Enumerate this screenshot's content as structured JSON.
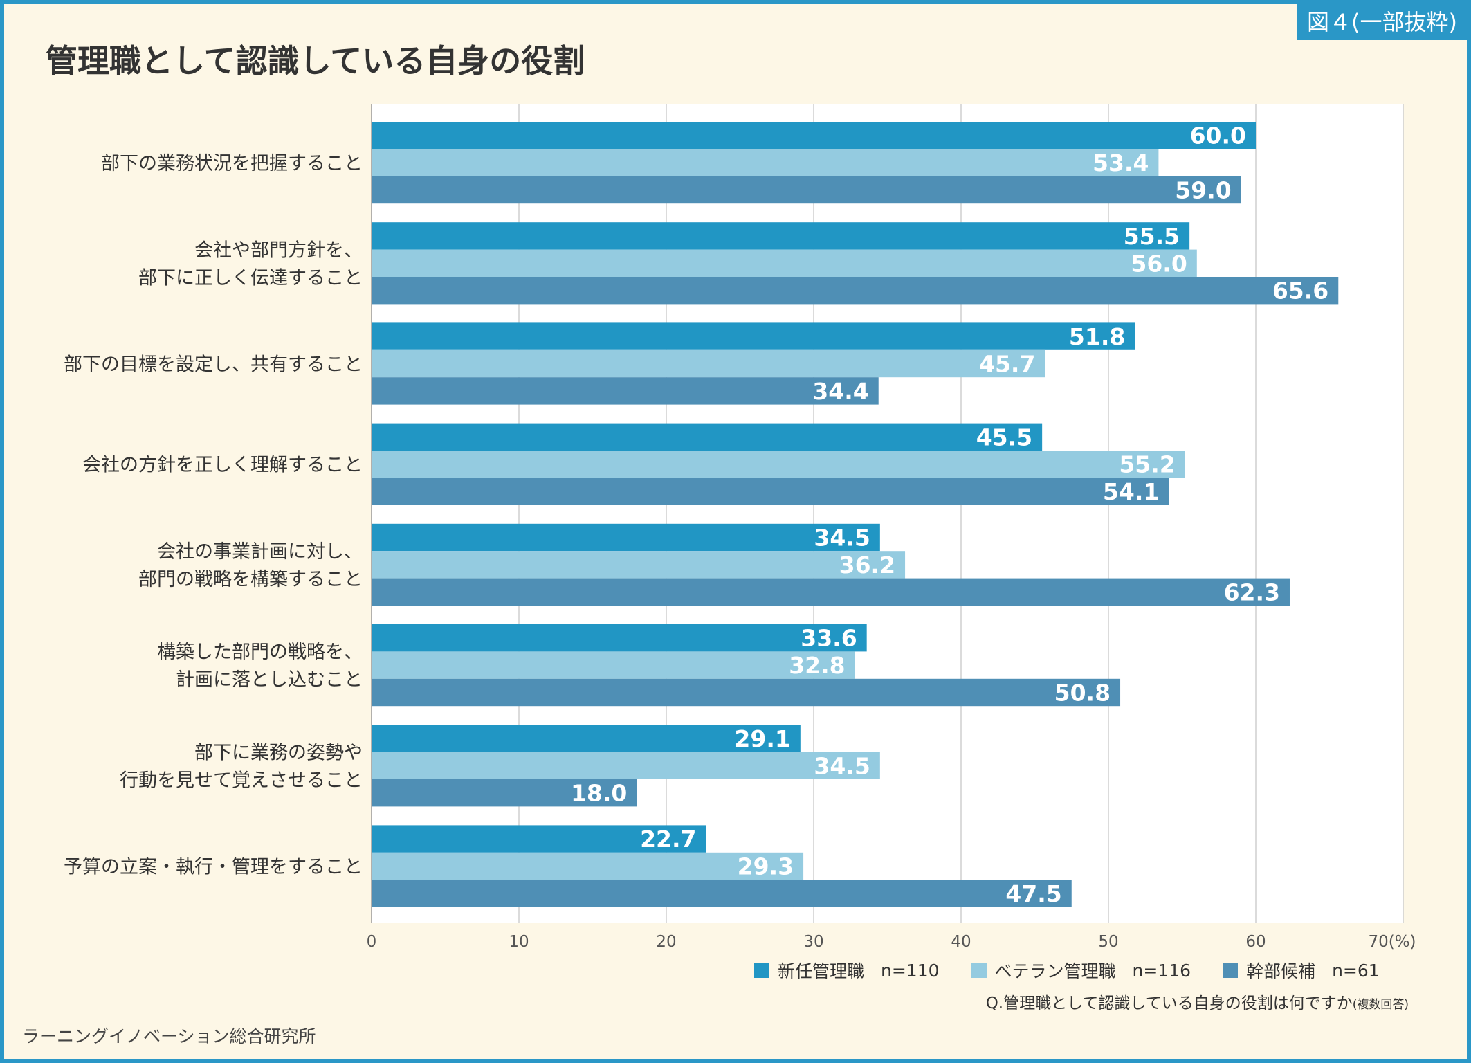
{
  "figure_badge": "図４(一部抜粋)",
  "title": "管理職として認識している自身の役割",
  "question": "Q.管理職として認識している自身の役割は何ですか",
  "question_note": "(複数回答)",
  "source": "ラーニングイノベーション総合研究所",
  "colors": {
    "frame": "#2a97c7",
    "background": "#fdf7e6",
    "plot_background": "#ffffff",
    "new_manager": "#2196c4",
    "veteran_manager": "#94cbe0",
    "candidate": "#4f8fb5"
  },
  "legend": [
    {
      "label": "新任管理職",
      "n": "n=110",
      "color": "#2196c4"
    },
    {
      "label": "ベテラン管理職",
      "n": "n=116",
      "color": "#94cbe0"
    },
    {
      "label": "幹部候補",
      "n": "n=61",
      "color": "#4f8fb5"
    }
  ],
  "chart_data": {
    "type": "bar",
    "orientation": "horizontal",
    "title": "管理職として認識している自身の役割",
    "unit": "(%)",
    "xlim": [
      0,
      70
    ],
    "x_ticks": [
      0,
      10,
      20,
      30,
      40,
      50,
      60,
      70
    ],
    "x_tick_labels": [
      "0",
      "10",
      "20",
      "30",
      "40",
      "50",
      "60",
      "70(%)"
    ],
    "grid": true,
    "legend_position": "bottom-right",
    "categories": [
      [
        "部下の業務状況を把握すること"
      ],
      [
        "会社や部門方針を、",
        "部下に正しく伝達すること"
      ],
      [
        "部下の目標を設定し、共有すること"
      ],
      [
        "会社の方針を正しく理解すること"
      ],
      [
        "会社の事業計画に対し、",
        "部門の戦略を構築すること"
      ],
      [
        "構築した部門の戦略を、",
        "計画に落とし込むこと"
      ],
      [
        "部下に業務の姿勢や",
        "行動を見せて覚えさせること"
      ],
      [
        "予算の立案・執行・管理をすること"
      ]
    ],
    "series": [
      {
        "name": "新任管理職",
        "values": [
          60.0,
          55.5,
          51.8,
          45.5,
          34.5,
          33.6,
          29.1,
          22.7
        ],
        "labels": [
          "60.0",
          "55.5",
          "51.8",
          "45.5",
          "34.5",
          "33.6",
          "29.1",
          "22.7"
        ]
      },
      {
        "name": "ベテラン管理職",
        "values": [
          53.4,
          56.0,
          45.7,
          55.2,
          36.2,
          32.8,
          34.5,
          29.3
        ],
        "labels": [
          "53.4",
          "56.0",
          "45.7",
          "55.2",
          "36.2",
          "32.8",
          "34.5",
          "29.3"
        ]
      },
      {
        "name": "幹部候補",
        "values": [
          59.0,
          65.6,
          34.4,
          54.1,
          62.3,
          50.8,
          18.0,
          47.5
        ],
        "labels": [
          "59.0",
          "65.6",
          "34.4",
          "54.1",
          "62.3",
          "50.8",
          "18.0",
          "47.5"
        ]
      }
    ]
  }
}
